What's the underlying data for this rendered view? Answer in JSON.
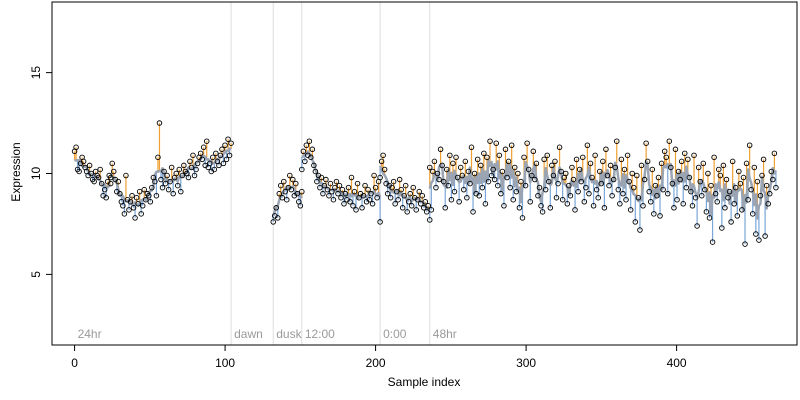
{
  "chart_data": {
    "type": "scatter",
    "xlabel": "Sample index",
    "ylabel": "Expression",
    "xlim": [
      -15,
      480
    ],
    "ylim": [
      1.5,
      18.5
    ],
    "x_ticks": [
      0,
      100,
      200,
      300,
      400
    ],
    "y_ticks": [
      5,
      10,
      15
    ],
    "grid": false,
    "colors": {
      "above": "#f0a030",
      "below": "#7aa6d8",
      "fit": "#9aa4b2",
      "phase_line": "#dddddd",
      "point_stroke": "#000000"
    },
    "phase_markers": [
      {
        "x": 0,
        "label": "24hr"
      },
      {
        "x": 104,
        "label": "dawn"
      },
      {
        "x": 132,
        "label": "dusk"
      },
      {
        "x": 151,
        "label": "12:00"
      },
      {
        "x": 203,
        "label": "0:00"
      },
      {
        "x": 236,
        "label": "48hr"
      }
    ],
    "segments": [
      {
        "x_start": 0,
        "x_end": 24,
        "points": [
          11.1,
          11.3,
          10.2,
          10.1,
          10.5,
          10.8,
          10.6,
          10.3,
          10.1,
          9.9,
          10.4,
          10.0,
          9.7,
          9.6,
          10.1,
          9.9,
          9.8,
          10.2,
          9.5,
          8.9,
          9.2,
          8.8,
          9.6,
          9.9,
          9.5
        ]
      },
      {
        "x_start": 24,
        "x_end": 104,
        "points": [
          9.8,
          10.5,
          10.1,
          9.7,
          9.1,
          9.6,
          9.0,
          8.6,
          8.4,
          8.0,
          9.9,
          8.7,
          8.2,
          8.6,
          8.9,
          8.3,
          7.8,
          8.8,
          8.5,
          9.1,
          8.0,
          8.4,
          9.2,
          8.7,
          9.0,
          8.9,
          8.6,
          9.3,
          9.8,
          9.6,
          8.9,
          10.8,
          12.5,
          9.7,
          9.3,
          10.1,
          9.5,
          9.9,
          9.2,
          9.6,
          10.3,
          9.0,
          9.8,
          10.0,
          9.4,
          10.2,
          9.1,
          9.9,
          10.4,
          10.1,
          10.0,
          9.8,
          10.6,
          10.3,
          10.9,
          9.9,
          10.2,
          10.5,
          10.8,
          11.0,
          10.7,
          11.3,
          10.4,
          11.6,
          10.3,
          10.5,
          10.1,
          10.8,
          10.2,
          11.0,
          10.6,
          10.4,
          10.9,
          11.2,
          10.5,
          11.4,
          10.7,
          11.7,
          10.9,
          11.5
        ]
      },
      {
        "x_start": 132,
        "x_end": 151,
        "points": [
          7.6,
          7.9,
          8.3,
          7.8,
          9.0,
          9.4,
          8.8,
          9.6,
          9.1,
          8.7,
          9.3,
          9.9,
          9.2,
          9.7,
          8.9,
          9.5,
          9.0,
          8.6,
          8.4,
          9.1
        ]
      },
      {
        "x_start": 151,
        "x_end": 203,
        "points": [
          10.2,
          11.1,
          10.6,
          11.4,
          10.9,
          11.6,
          10.8,
          11.2,
          10.4,
          10.1,
          9.6,
          9.9,
          9.3,
          9.8,
          9.0,
          9.4,
          9.7,
          9.2,
          8.9,
          9.5,
          9.1,
          8.7,
          9.3,
          9.6,
          9.0,
          9.4,
          8.8,
          9.2,
          8.5,
          9.0,
          8.7,
          9.3,
          8.6,
          9.8,
          8.4,
          9.1,
          8.2,
          9.5,
          8.8,
          9.0,
          8.3,
          8.9,
          9.4,
          8.6,
          9.2,
          8.7,
          9.0,
          8.5,
          9.9,
          9.3,
          8.8,
          9.6,
          7.6
        ]
      },
      {
        "x_start": 203,
        "x_end": 236,
        "points": [
          9.8,
          10.6,
          10.9,
          10.2,
          9.5,
          9.0,
          9.4,
          8.8,
          9.3,
          9.6,
          8.5,
          9.1,
          8.7,
          9.7,
          9.2,
          8.3,
          8.9,
          9.4,
          8.1,
          8.6,
          9.0,
          8.4,
          9.3,
          8.8,
          8.2,
          8.7,
          9.1,
          8.5,
          8.9,
          8.3,
          8.6,
          8.1,
          8.4,
          7.7
        ]
      },
      {
        "x_start": 236,
        "x_end": 466,
        "points": [
          10.3,
          8.2,
          10.1,
          10.6,
          9.3,
          10.0,
          9.7,
          11.2,
          10.4,
          9.6,
          8.3,
          10.2,
          9.4,
          10.9,
          8.7,
          10.5,
          9.1,
          10.8,
          9.8,
          8.6,
          10.3,
          9.9,
          9.2,
          10.6,
          8.8,
          10.1,
          9.5,
          11.3,
          8.1,
          10.0,
          9.0,
          10.7,
          8.9,
          10.4,
          9.3,
          11.0,
          8.5,
          10.8,
          9.6,
          11.6,
          9.9,
          10.2,
          9.7,
          11.5,
          9.4,
          10.9,
          9.0,
          10.1,
          8.4,
          11.2,
          9.8,
          10.6,
          9.3,
          11.4,
          8.7,
          10.3,
          9.1,
          10.0,
          8.3,
          9.6,
          7.8,
          10.8,
          9.4,
          11.5,
          10.2,
          8.6,
          9.9,
          11.1,
          9.7,
          10.5,
          8.9,
          9.3,
          8.4,
          8.1,
          10.7,
          9.2,
          10.9,
          9.6,
          8.3,
          10.4,
          9.9,
          10.6,
          8.8,
          9.5,
          11.3,
          10.1,
          8.7,
          9.8,
          10.0,
          8.5,
          9.4,
          8.9,
          10.3,
          9.7,
          8.2,
          10.7,
          9.1,
          10.2,
          9.6,
          10.8,
          8.6,
          9.3,
          11.4,
          9.0,
          10.5,
          9.8,
          8.4,
          10.9,
          9.2,
          8.8,
          10.1,
          9.5,
          10.6,
          8.3,
          11.2,
          9.9,
          9.4,
          10.4,
          8.9,
          9.7,
          10.3,
          11.6,
          9.2,
          8.5,
          10.7,
          9.0,
          10.2,
          8.7,
          10.9,
          9.6,
          8.2,
          10.0,
          9.3,
          7.6,
          9.9,
          8.8,
          7.2,
          10.4,
          8.4,
          9.7,
          11.5,
          10.6,
          9.1,
          8.6,
          10.2,
          8.0,
          9.4,
          8.9,
          9.8,
          7.9,
          10.5,
          9.2,
          11.1,
          10.8,
          9.0,
          11.6,
          10.3,
          9.5,
          8.3,
          11.2,
          8.7,
          10.1,
          9.7,
          10.6,
          8.5,
          11.0,
          9.3,
          10.7,
          9.8,
          9.1,
          8.4,
          10.9,
          8.8,
          7.4,
          10.3,
          9.6,
          8.9,
          10.5,
          9.2,
          8.1,
          10.0,
          7.8,
          9.4,
          6.6,
          10.8,
          9.0,
          8.6,
          10.2,
          9.9,
          7.3,
          10.4,
          8.3,
          9.7,
          8.8,
          9.1,
          7.6,
          10.6,
          8.5,
          9.3,
          7.9,
          10.1,
          9.5,
          8.2,
          9.8,
          6.5,
          10.5,
          8.7,
          11.4,
          9.2,
          8.0,
          10.3,
          7.0,
          9.6,
          6.7,
          8.9,
          9.9,
          10.7,
          6.9,
          9.4,
          8.5,
          9.0,
          10.1,
          9.7,
          11.0,
          9.3
        ]
      }
    ]
  }
}
